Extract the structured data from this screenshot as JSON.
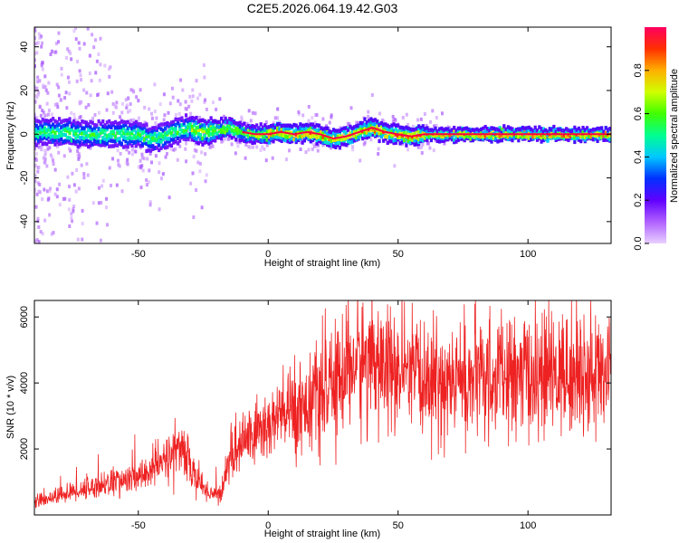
{
  "title": "C2E5.2026.064.19.42.G03",
  "chart_data": [
    {
      "type": "heatmap",
      "xlabel": "Height of straight line (km)",
      "ylabel": "Frequency (Hz)",
      "xlim": [
        -90,
        132
      ],
      "ylim": [
        -50,
        49
      ],
      "xticks": [
        -50,
        0,
        50,
        100
      ],
      "yticks": [
        -40,
        -20,
        0,
        20,
        40
      ],
      "colorbar": {
        "label": "Normalized spectral amplitude",
        "range": [
          0,
          1
        ],
        "ticks": [
          "0.0",
          "0.2",
          "0.4",
          "0.6",
          "0.8"
        ],
        "tick_values": [
          0,
          0.2,
          0.4,
          0.6,
          0.8
        ],
        "colormap": [
          "#e8d0ff",
          "#b060ff",
          "#6000ff",
          "#0030ff",
          "#00c8ff",
          "#00ff90",
          "#40ff00",
          "#d0ff00",
          "#ffb000",
          "#ff3000",
          "#ff0060"
        ]
      },
      "ridge": {
        "x": [
          -90,
          -80,
          -70,
          -60,
          -50,
          -45,
          -40,
          -35,
          -30,
          -25,
          -20,
          -15,
          -10,
          -5,
          0,
          5,
          10,
          15,
          20,
          25,
          30,
          35,
          40,
          45,
          50,
          55,
          60,
          70,
          80,
          90,
          100,
          110,
          120,
          132
        ],
        "freq": [
          1,
          1,
          0,
          0,
          0,
          -2,
          -1,
          2,
          3,
          1,
          2,
          3,
          1,
          0,
          0,
          1,
          0,
          1,
          0,
          -2,
          -1,
          1,
          3,
          1,
          0,
          -1,
          0,
          0,
          0,
          0,
          0,
          0,
          0,
          0
        ]
      }
    },
    {
      "type": "line",
      "xlabel": "Height of straight line (km)",
      "ylabel": "SNR (10 * v/v)",
      "xlim": [
        -90,
        132
      ],
      "ylim": [
        0,
        6500
      ],
      "xticks": [
        -50,
        0,
        50,
        100
      ],
      "yticks": [
        2000,
        4000,
        6000
      ],
      "line_color": "#ee2222",
      "series": [
        {
          "x": [
            -90,
            -80,
            -70,
            -60,
            -50,
            -45,
            -40,
            -35,
            -30,
            -25,
            -20,
            -18,
            -15,
            -10,
            -5,
            0,
            5,
            10,
            15,
            20,
            25,
            30,
            35,
            40,
            45,
            50,
            60,
            70,
            80,
            90,
            100,
            110,
            120,
            132
          ],
          "values": [
            400,
            600,
            800,
            1000,
            1100,
            1400,
            1600,
            2100,
            1500,
            800,
            600,
            700,
            1700,
            2200,
            2500,
            2700,
            3000,
            3200,
            3400,
            3600,
            3800,
            4500,
            4600,
            4800,
            4500,
            4200,
            4100,
            4000,
            4100,
            4150,
            4200,
            4250,
            4250,
            4300
          ]
        }
      ]
    }
  ]
}
